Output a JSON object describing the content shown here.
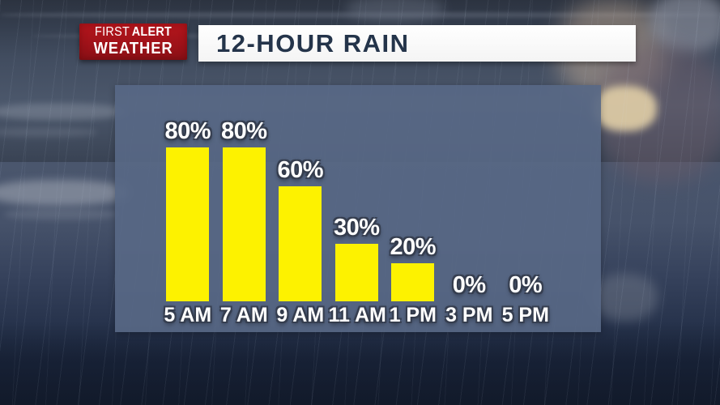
{
  "brand": {
    "line1_regular": "FIRST",
    "line1_bold": "ALERT",
    "line2": "WEATHER"
  },
  "header": {
    "title": "12-HOUR RAIN"
  },
  "chart_data": {
    "type": "bar",
    "title": "12-HOUR RAIN",
    "categories": [
      "5 AM",
      "7 AM",
      "9 AM",
      "11 AM",
      "1 PM",
      "3 PM",
      "5 PM"
    ],
    "values": [
      80,
      80,
      60,
      30,
      20,
      0,
      0
    ],
    "value_labels": [
      "80%",
      "80%",
      "60%",
      "30%",
      "20%",
      "0%",
      "0%"
    ],
    "unit": "%",
    "xlabel": "",
    "ylabel": "",
    "ylim": [
      0,
      100
    ],
    "grid": false,
    "legend": false,
    "bar_color": "#fdf200",
    "label_text_color": "#ffffff",
    "panel_color": "#586885"
  },
  "colors": {
    "logo_red": "#a01219",
    "title_text": "#24344a",
    "title_bg": "#ffffff",
    "background_navy": "#1e2a42"
  }
}
